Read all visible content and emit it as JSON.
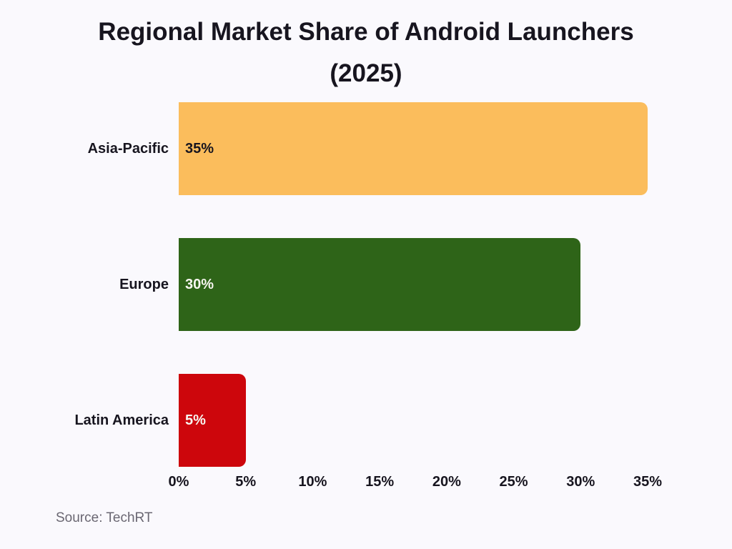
{
  "title": "Regional Market Share of Android Launchers (2025)",
  "source": "Source: TechRT",
  "colors": {
    "background": "#faf9fd",
    "title_text": "#17151f",
    "axis_text": "#17151f",
    "source_text": "#6a6772"
  },
  "chart_data": {
    "type": "bar",
    "orientation": "horizontal",
    "title": "Regional Market Share of Android Launchers (2025)",
    "xlabel": "",
    "ylabel": "",
    "categories": [
      "Asia-Pacific",
      "Europe",
      "Latin America"
    ],
    "values": [
      35,
      30,
      5
    ],
    "value_labels": [
      "35%",
      "30%",
      "5%"
    ],
    "bar_colors": [
      "#fbbd5c",
      "#2e6418",
      "#cd060c"
    ],
    "value_label_colors": [
      "#17151f",
      "#f7f6f0",
      "#f7f6f0"
    ],
    "xlim": [
      0,
      35
    ],
    "x_ticks": [
      "0%",
      "5%",
      "10%",
      "15%",
      "20%",
      "25%",
      "30%",
      "35%"
    ],
    "x_tick_values": [
      0,
      5,
      10,
      15,
      20,
      25,
      30,
      35
    ],
    "grid": false,
    "legend": false,
    "value_labels_inside_bar": true,
    "source_annotation": "Source: TechRT"
  }
}
